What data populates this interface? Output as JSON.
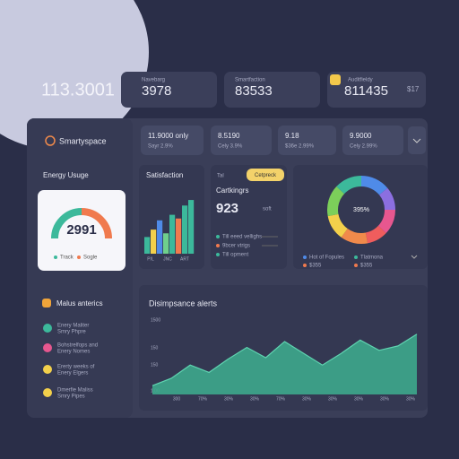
{
  "headline": "113.3001",
  "top_cards": [
    {
      "label": "Navebarg",
      "value": "3978"
    },
    {
      "label": "Smartfaction",
      "value": "83533"
    },
    {
      "label": "Auditfieldy",
      "value": "811435",
      "extra": "$17"
    }
  ],
  "sidebar": {
    "brand": "Smartyspace",
    "energy_title": "Energy Usuge",
    "gauge_value": "2991",
    "gauge_legend": [
      "Track",
      "Sogle"
    ],
    "metrics_title": "Malus anterics",
    "items": [
      {
        "title": "Enery Maliter",
        "sub": "Smry Phpre",
        "color": "#3cb99b"
      },
      {
        "title": "Bohstrelfops and",
        "sub": "Enery Nomes",
        "color": "#e7578f"
      },
      {
        "title": "Ererty weeks of",
        "sub": "Enery Elgers",
        "color": "#f3d04b"
      },
      {
        "title": "Dmerfie Maliss",
        "sub": "Smry Pipes",
        "color": "#f3d04b"
      }
    ]
  },
  "mini_cards": [
    {
      "value": "11.9000 only",
      "sub": "Sayr 2.9%"
    },
    {
      "value": "8.5190",
      "sub": "Cely 3.9%"
    },
    {
      "value": "9.18",
      "sub": "$36e 2.99%"
    },
    {
      "value": "9.9000",
      "sub": "Cely 2.99%"
    }
  ],
  "satisfaction": {
    "title": "Satisfaction",
    "ylim": [
      0,
      60
    ],
    "values": [
      18,
      26,
      36,
      22,
      42,
      38,
      52,
      58
    ],
    "colors": [
      "#3cb99b",
      "#f3d04b",
      "#4f8be8",
      "#6fd08c",
      "#3cb99b",
      "#f07a4e",
      "#3cb99b",
      "#3cb99b"
    ],
    "labels": [
      "P/L",
      "JNC",
      "ART"
    ]
  },
  "rankings": {
    "tab": "Tal",
    "badge": "Cetpreck",
    "title": "Cartkingrs",
    "value": "923",
    "unit": "soft",
    "items": [
      {
        "text": "Till eeed vellighs",
        "color": "#3cb99b"
      },
      {
        "text": "9bcer vtrigs",
        "color": "#f07a4e"
      },
      {
        "text": "Till opment",
        "color": "#3cb99b"
      }
    ]
  },
  "donut": {
    "center": "395%",
    "values": [
      14,
      11,
      12,
      10,
      13,
      12,
      15,
      13
    ],
    "colors": [
      "#4f8be8",
      "#8b6fe0",
      "#e7578f",
      "#ef5d5d",
      "#f08a4b",
      "#f3d04b",
      "#7ccf5a",
      "#3cb99b"
    ],
    "legend": [
      {
        "text": "Hot of Fopules",
        "color": "#4f8be8"
      },
      {
        "text": "Tlatmona",
        "color": "#3cb99b"
      },
      {
        "text": "$355",
        "color": "#f07a4e"
      },
      {
        "text": "$355",
        "color": "#f07a4e"
      }
    ]
  },
  "alerts": {
    "title": "Disimpsance alerts",
    "ylim": [
      0,
      100
    ],
    "values": [
      12,
      22,
      40,
      30,
      48,
      64,
      50,
      72,
      56,
      40,
      56,
      74,
      60,
      66,
      82
    ],
    "y_labels": [
      "1500",
      "150",
      "150",
      "1.00"
    ],
    "x_labels": [
      "300",
      "70%",
      "30%",
      "30%",
      "70%",
      "30%",
      "30%",
      "30%",
      "30%",
      "30%"
    ]
  }
}
